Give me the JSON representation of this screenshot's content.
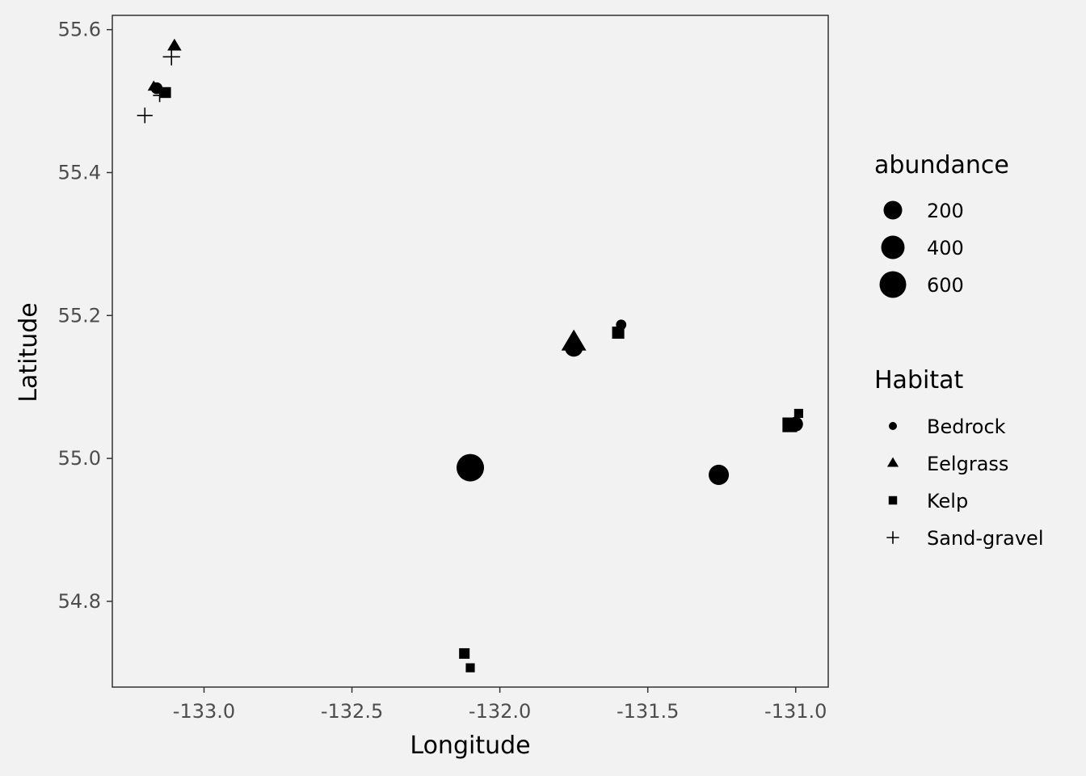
{
  "chart_data": {
    "type": "scatter",
    "title": "",
    "xlabel": "Longitude",
    "ylabel": "Latitude",
    "xlim": [
      -133.31,
      -130.89
    ],
    "ylim": [
      54.68,
      55.62
    ],
    "x_ticks": [
      -133.0,
      -132.5,
      -132.0,
      -131.5,
      -131.0
    ],
    "x_tick_labels": [
      "-133.0",
      "-132.5",
      "-132.0",
      "-131.5",
      "-131.0"
    ],
    "y_ticks": [
      54.8,
      55.0,
      55.2,
      55.4,
      55.6
    ],
    "y_tick_labels": [
      "54.8",
      "55.0",
      "55.2",
      "55.4",
      "55.6"
    ],
    "grid": false,
    "legend_placement": "right",
    "size_legend": {
      "title": "abundance",
      "entries": [
        {
          "label": "200",
          "value": 200
        },
        {
          "label": "400",
          "value": 400
        },
        {
          "label": "600",
          "value": 600
        }
      ]
    },
    "shape_legend": {
      "title": "Habitat",
      "entries": [
        {
          "label": "Bedrock",
          "shape": "circle"
        },
        {
          "label": "Eelgrass",
          "shape": "triangle"
        },
        {
          "label": "Kelp",
          "shape": "square"
        },
        {
          "label": "Sand-gravel",
          "shape": "plus"
        }
      ]
    },
    "points": [
      {
        "x": -133.1,
        "y": 55.577,
        "habitat": "Eelgrass",
        "abundance": 40
      },
      {
        "x": -133.11,
        "y": 55.562,
        "habitat": "Sand-gravel",
        "abundance": 60
      },
      {
        "x": -133.16,
        "y": 55.518,
        "habitat": "Bedrock",
        "abundance": 50
      },
      {
        "x": -133.17,
        "y": 55.52,
        "habitat": "Eelgrass",
        "abundance": 20
      },
      {
        "x": -133.13,
        "y": 55.512,
        "habitat": "Kelp",
        "abundance": 45
      },
      {
        "x": -133.15,
        "y": 55.508,
        "habitat": "Sand-gravel",
        "abundance": 20
      },
      {
        "x": -133.2,
        "y": 55.48,
        "habitat": "Sand-gravel",
        "abundance": 40
      },
      {
        "x": -131.75,
        "y": 55.162,
        "habitat": "Eelgrass",
        "abundance": 260
      },
      {
        "x": -131.75,
        "y": 55.155,
        "habitat": "Bedrock",
        "abundance": 210
      },
      {
        "x": -131.59,
        "y": 55.187,
        "habitat": "Bedrock",
        "abundance": 30
      },
      {
        "x": -131.6,
        "y": 55.176,
        "habitat": "Kelp",
        "abundance": 70
      },
      {
        "x": -132.1,
        "y": 54.987,
        "habitat": "Bedrock",
        "abundance": 650
      },
      {
        "x": -132.1,
        "y": 54.98,
        "habitat": "Eelgrass",
        "abundance": 30
      },
      {
        "x": -131.26,
        "y": 54.977,
        "habitat": "Bedrock",
        "abundance": 290
      },
      {
        "x": -131.26,
        "y": 54.972,
        "habitat": "Eelgrass",
        "abundance": 20
      },
      {
        "x": -130.99,
        "y": 55.063,
        "habitat": "Kelp",
        "abundance": 20
      },
      {
        "x": -131.0,
        "y": 55.048,
        "habitat": "Bedrock",
        "abundance": 110
      },
      {
        "x": -131.02,
        "y": 55.047,
        "habitat": "Kelp",
        "abundance": 130
      },
      {
        "x": -132.12,
        "y": 54.727,
        "habitat": "Kelp",
        "abundance": 40
      },
      {
        "x": -132.1,
        "y": 54.707,
        "habitat": "Kelp",
        "abundance": 20
      }
    ],
    "colors": {
      "background": "#f2f2f2",
      "panel_border": "#333333",
      "point": "#000000",
      "tick_text": "#4d4d4d"
    }
  }
}
